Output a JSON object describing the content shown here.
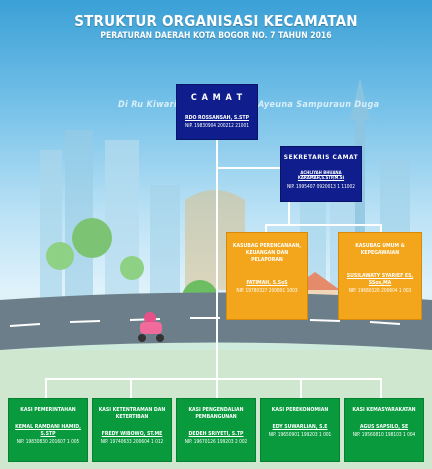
{
  "header": {
    "title": "STRUKTUR ORGANISASI KECAMATAN",
    "subtitle": "PERATURAN DAERAH KOTA BOGOR NO. 7 TAHUN 2016",
    "bg_text_left": "Di Ru Kiwari",
    "bg_text_right": "Ayeuna Sampuraun Duga"
  },
  "camat": {
    "title": "C A M A T",
    "name": "RDO ROSSANSAH, S.STP",
    "nip": "NIP. 19830904 200212 21001"
  },
  "sekretaris": {
    "title": "SEKRETARIS CAMAT",
    "name": "ACHLIYAH BHUANA KARAMAH,S.STP,M.SI",
    "nip": "NIP. 1995407 0920013 1 11002"
  },
  "subbag": [
    {
      "title": "KASUBAG PERENCANAAN, KEUANGAN DAN PELAPORAN",
      "name": "FATIMAH, S.SoS",
      "nip": "NIP. 19780327 200801 1003"
    },
    {
      "title": "KASUBAG UMUM & KEPEGAWAIAN",
      "name": "SUSILAWATY SYARIEF ES, SSos,MA",
      "nip": "NIP. 19680326 200604 1 003"
    }
  ],
  "kasi": [
    {
      "title": "KASI PEMERINTAHAN",
      "name": "KEMAL RAMDANI HAMID, S.STP",
      "nip": "NIP. 19830830 201607 1 005"
    },
    {
      "title": "KASI KETENTRAMAN DAN KETERTIBAN",
      "name": "FREDY WIBOWO, ST.ME",
      "nip": "NIP. 19740633 200604 1 012"
    },
    {
      "title": "KASI PENGENDALIAN PEMBANGUNAN",
      "name": "DEDEH SRIYETI, S.TP",
      "nip": "NIP. 19670126 199203 2 002"
    },
    {
      "title": "KASI PEREKONOMIAN",
      "name": "EDY SUWARLIAN, S.E",
      "nip": "NIP. 19650901 199203 1 001"
    },
    {
      "title": "KASI KEMASYARAKATAN",
      "name": "AGUS SAPSILO, SE",
      "nip": "NIP. 19560810 198103 1 004"
    }
  ]
}
